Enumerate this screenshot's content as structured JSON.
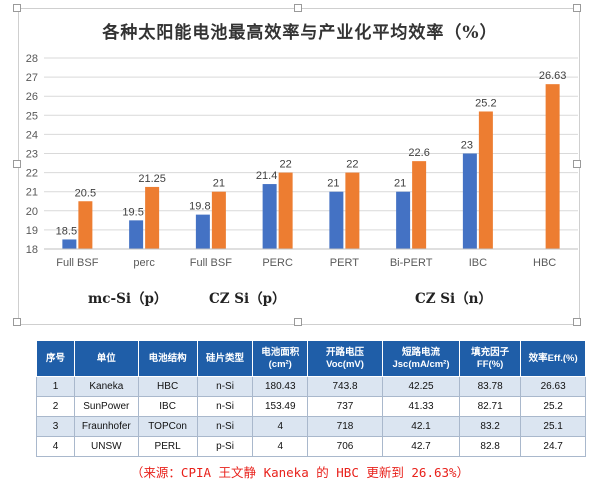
{
  "chart_data": {
    "type": "bar",
    "title": "各种太阳能电池最高效率与产业化平均效率（%）",
    "categories": [
      "Full BSF",
      "perc",
      "Full BSF",
      "PERC",
      "PERT",
      "Bi-PERT",
      "IBC",
      "HBC"
    ],
    "series": [
      {
        "values": [
          18.5,
          19.5,
          19.8,
          21.4,
          21,
          21,
          23,
          null
        ],
        "color": "#4472c4"
      },
      {
        "values": [
          20.5,
          21.25,
          21,
          22,
          22,
          22.6,
          25.2,
          26.63
        ],
        "color": "#ed7d31"
      }
    ],
    "ylim": [
      18,
      28
    ],
    "yticks": [
      18,
      19,
      20,
      21,
      22,
      23,
      24,
      25,
      26,
      27,
      28
    ],
    "grid": true,
    "legend": "none",
    "group_labels": [
      "mc-Si（p）",
      "CZ Si（p）",
      "CZ Si（n）"
    ]
  },
  "table": {
    "headers": [
      "序号",
      "单位",
      "电池结构",
      "硅片类型",
      "电池面积(cm²)",
      "开路电压Voc(mV)",
      "短路电流Jsc(mA/cm²)",
      "填充因子FF(%)",
      "效率Eff.(%)"
    ],
    "rows": [
      [
        "1",
        "Kaneka",
        "HBC",
        "n-Si",
        "180.43",
        "743.8",
        "42.25",
        "83.78",
        "26.63"
      ],
      [
        "2",
        "SunPower",
        "IBC",
        "n-Si",
        "153.49",
        "737",
        "41.33",
        "82.71",
        "25.2"
      ],
      [
        "3",
        "Fraunhofer",
        "TOPCon",
        "n-Si",
        "4",
        "718",
        "42.1",
        "83.2",
        "25.1"
      ],
      [
        "4",
        "UNSW",
        "PERL",
        "p-Si",
        "4",
        "706",
        "42.7",
        "82.8",
        "24.7"
      ]
    ]
  },
  "source": "（来源：CPIA 王文静  Kaneka 的 HBC 更新到 26.63%）"
}
